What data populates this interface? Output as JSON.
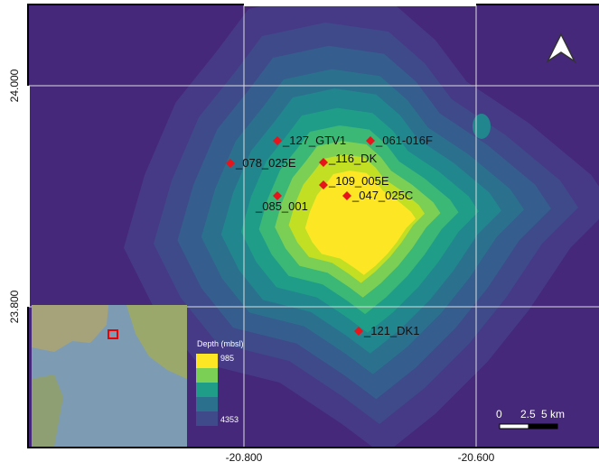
{
  "axes": {
    "left": [
      "24.000",
      "23.800"
    ],
    "bottom": [
      "-20.800",
      "-20.600"
    ]
  },
  "stations": [
    {
      "label": "_127_GTV1"
    },
    {
      "label": "_061-016F"
    },
    {
      "label": "_078_025E"
    },
    {
      "label": "_116_DK"
    },
    {
      "label": "_109_005E"
    },
    {
      "label": "_047_025C"
    },
    {
      "label": "_085_001"
    },
    {
      "label": "_121_DK1"
    }
  ],
  "legend": {
    "title": "Depth (mbsl)",
    "max": "985",
    "min": "4353"
  },
  "scale_bar": {
    "labels": [
      "0",
      "2.5",
      "5 km"
    ]
  }
}
